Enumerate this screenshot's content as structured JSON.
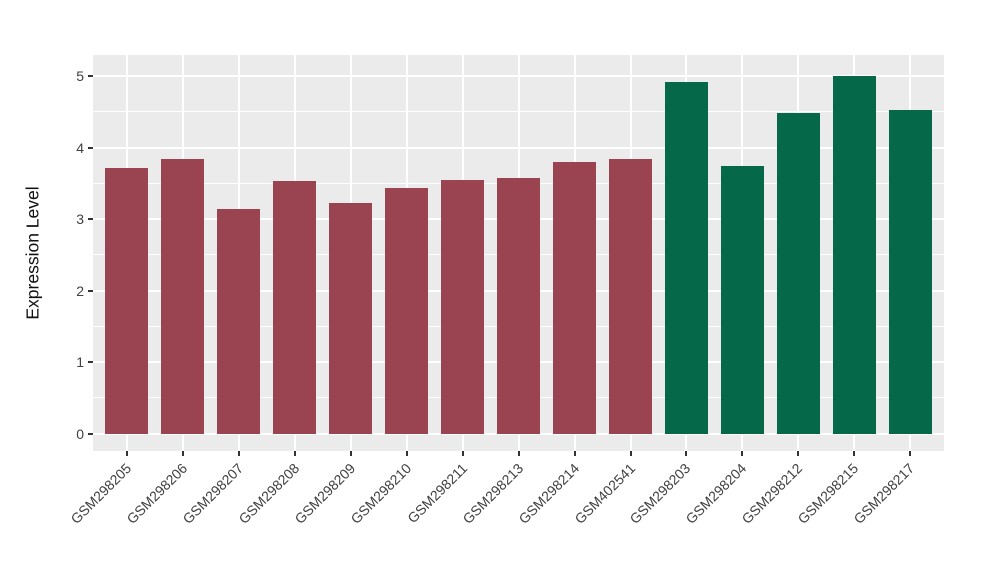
{
  "chart_data": {
    "type": "bar",
    "title": "",
    "xlabel": "",
    "ylabel": "Expression Level",
    "categories": [
      "GSM298205",
      "GSM298206",
      "GSM298207",
      "GSM298208",
      "GSM298209",
      "GSM298210",
      "GSM298211",
      "GSM298213",
      "GSM298214",
      "GSM402541",
      "GSM298203",
      "GSM298204",
      "GSM298212",
      "GSM298215",
      "GSM298217"
    ],
    "values": [
      3.72,
      3.84,
      3.14,
      3.54,
      3.22,
      3.43,
      3.55,
      3.57,
      3.8,
      3.84,
      4.92,
      3.75,
      4.49,
      5.0,
      4.53
    ],
    "bar_groups": [
      "red",
      "red",
      "red",
      "red",
      "red",
      "red",
      "red",
      "red",
      "red",
      "red",
      "green",
      "green",
      "green",
      "green",
      "green"
    ],
    "group_colors": {
      "red": "#9B4451",
      "green": "#046849"
    },
    "ylim": [
      0,
      5
    ],
    "yticks": [
      "0",
      "1",
      "2",
      "3",
      "4",
      "5"
    ],
    "ytick_values": [
      0,
      1,
      2,
      3,
      4,
      5
    ],
    "minor_ytick_values": [
      0.5,
      1.5,
      2.5,
      3.5,
      4.5
    ],
    "grid": "on",
    "legend": "none",
    "panel_bg": "#EBEBEB",
    "grid_color": "#FFFFFF",
    "tick_mark_color": "#333333"
  }
}
